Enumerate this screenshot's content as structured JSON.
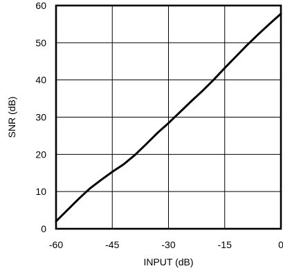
{
  "chart_data": {
    "type": "line",
    "title": "",
    "xlabel": "INPUT (dB)",
    "ylabel": "SNR (dB)",
    "xlim": [
      -60,
      0
    ],
    "ylim": [
      0,
      60
    ],
    "x_ticks": [
      -60,
      -45,
      -30,
      -15,
      0
    ],
    "x_tick_labels": [
      "-60",
      "-45",
      "-30",
      "-15",
      "0"
    ],
    "y_ticks": [
      0,
      10,
      20,
      30,
      40,
      50,
      60
    ],
    "y_tick_labels": [
      "0",
      "10",
      "20",
      "30",
      "40",
      "50",
      "60"
    ],
    "grid": true,
    "series": [
      {
        "x": [
          -60,
          -57,
          -54,
          -51,
          -48,
          -45,
          -42,
          -39,
          -36,
          -33,
          -30,
          -27,
          -24,
          -21,
          -18,
          -15,
          -12,
          -9,
          -6,
          -3,
          0
        ],
        "values": [
          2,
          5,
          8,
          10.8,
          13.1,
          15.3,
          17.3,
          19.8,
          22.7,
          25.7,
          28.4,
          31.3,
          34.2,
          37,
          40,
          43.2,
          46.3,
          49.4,
          52.3,
          55.1,
          57.8
        ]
      }
    ],
    "colors": {
      "line": "#000000",
      "grid": "#000000",
      "frame": "#000000"
    }
  }
}
